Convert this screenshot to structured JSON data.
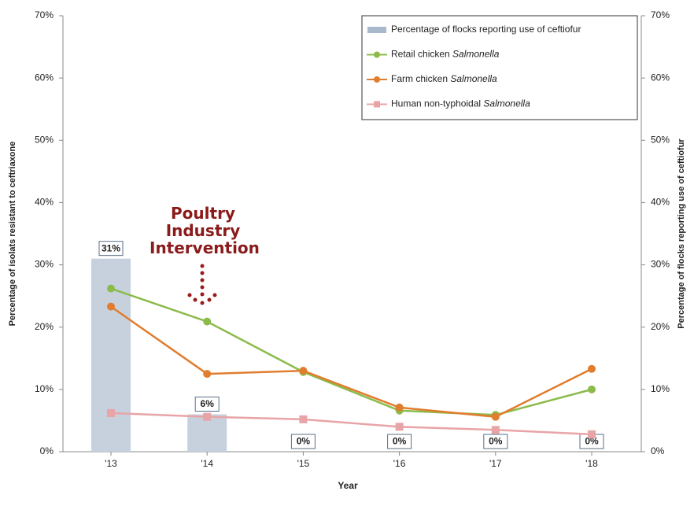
{
  "chart_data": {
    "type": "line",
    "annotation": "Poultry Industry Intervention",
    "x_label": "Year",
    "y_label": "Percentage of isolats resistant to ceftriaxone",
    "y2_label": "Percentage of flocks reporting use of ceftiofur",
    "categories": [
      "'13",
      "'14",
      "'15",
      "'16",
      "'17",
      "'18"
    ],
    "ylim": [
      0,
      70
    ],
    "yticks": [
      {
        "value": 0,
        "label": "0%"
      },
      {
        "value": 10,
        "label": "10%"
      },
      {
        "value": 20,
        "label": "20%"
      },
      {
        "value": 30,
        "label": "30%"
      },
      {
        "value": 40,
        "label": "40%"
      },
      {
        "value": 50,
        "label": "50%"
      },
      {
        "value": 60,
        "label": "60%"
      },
      {
        "value": 70,
        "label": "70%"
      }
    ],
    "y2lim": [
      0,
      70
    ],
    "y2ticks": [
      {
        "value": 0,
        "label": "0%"
      },
      {
        "value": 10,
        "label": "10%"
      },
      {
        "value": 20,
        "label": "20%"
      },
      {
        "value": 30,
        "label": "30%"
      },
      {
        "value": 40,
        "label": "40%"
      },
      {
        "value": 50,
        "label": "50%"
      },
      {
        "value": 60,
        "label": "60%"
      },
      {
        "value": 70,
        "label": "70%"
      }
    ],
    "series": [
      {
        "name": "Percentage of flocks reporting use of ceftiofur",
        "type": "bar",
        "axis": "y2",
        "color": "#c7d1de",
        "values": [
          31,
          6,
          0,
          0,
          0,
          0
        ],
        "value_labels": [
          "31%",
          "6%",
          "0%",
          "0%",
          "0%",
          "0%"
        ]
      },
      {
        "name": "Retail chicken Salmonella",
        "type": "line",
        "color": "#8cbb4c",
        "marker": "circle",
        "values": [
          26.2,
          20.9,
          12.8,
          6.6,
          5.9,
          10
        ]
      },
      {
        "name": "Farm chicken Salmonella",
        "type": "line",
        "color": "#e07d2e",
        "marker": "circle",
        "values": [
          23.3,
          12.5,
          13,
          7.1,
          5.6,
          13.3
        ]
      },
      {
        "name": "Human non-typhoidal Salmonella",
        "type": "line",
        "color": "#e8a4a6",
        "marker": "square",
        "values": [
          6.2,
          5.6,
          5.2,
          4,
          3.5,
          2.8
        ]
      }
    ]
  }
}
